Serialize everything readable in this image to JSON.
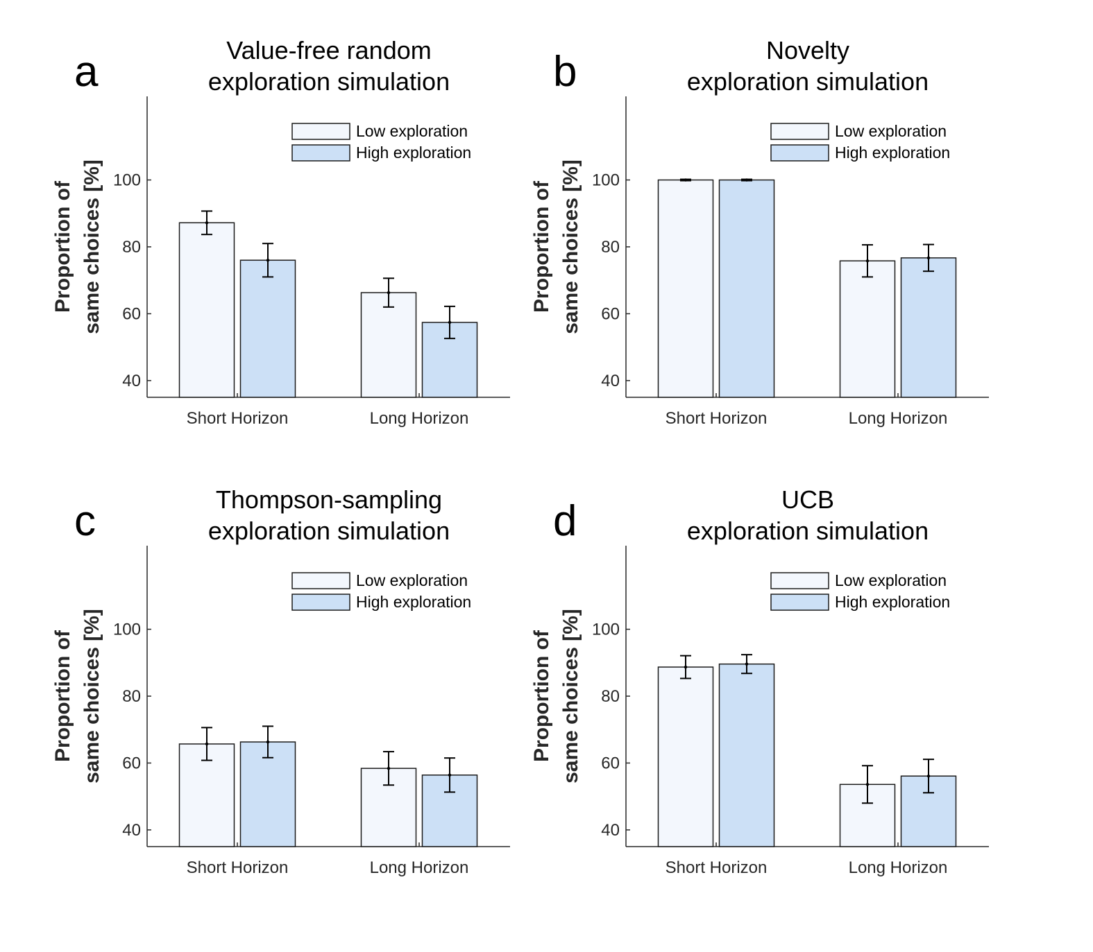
{
  "colors": {
    "low": "#f3f7fd",
    "high": "#cce0f6",
    "stroke": "#1a1a1a"
  },
  "chart_data": [
    {
      "type": "bar",
      "panel": "a",
      "title_lines": [
        "Value-free random",
        "exploration simulation"
      ],
      "ylabel_lines": [
        "Proportion of",
        "same choices [%]"
      ],
      "categories": [
        "Short Horizon",
        "Long Horizon"
      ],
      "ylim": [
        35,
        125
      ],
      "yticks": [
        40,
        60,
        80,
        100
      ],
      "legend": {
        "position": "top-right"
      },
      "series": [
        {
          "name": "Low exploration",
          "values": [
            87.2,
            66.3
          ],
          "errors": [
            3.5,
            4.3
          ]
        },
        {
          "name": "High exploration",
          "values": [
            76.0,
            57.4
          ],
          "errors": [
            5.0,
            4.8
          ]
        }
      ]
    },
    {
      "type": "bar",
      "panel": "b",
      "title_lines": [
        "Novelty",
        "exploration simulation"
      ],
      "ylabel_lines": [
        "Proportion of",
        "same choices [%]"
      ],
      "categories": [
        "Short Horizon",
        "Long Horizon"
      ],
      "ylim": [
        35,
        125
      ],
      "yticks": [
        40,
        60,
        80,
        100
      ],
      "legend": {
        "position": "top-right"
      },
      "series": [
        {
          "name": "Low exploration",
          "values": [
            100.0,
            75.8
          ],
          "errors": [
            0.2,
            4.8
          ]
        },
        {
          "name": "High exploration",
          "values": [
            100.0,
            76.7
          ],
          "errors": [
            0.2,
            4.0
          ]
        }
      ]
    },
    {
      "type": "bar",
      "panel": "c",
      "title_lines": [
        "Thompson-sampling",
        "exploration simulation"
      ],
      "ylabel_lines": [
        "Proportion of",
        "same choices [%]"
      ],
      "categories": [
        "Short Horizon",
        "Long Horizon"
      ],
      "ylim": [
        35,
        125
      ],
      "yticks": [
        40,
        60,
        80,
        100
      ],
      "legend": {
        "position": "top-right"
      },
      "series": [
        {
          "name": "Low exploration",
          "values": [
            65.7,
            58.4
          ],
          "errors": [
            4.9,
            5.0
          ]
        },
        {
          "name": "High exploration",
          "values": [
            66.3,
            56.4
          ],
          "errors": [
            4.7,
            5.1
          ]
        }
      ]
    },
    {
      "type": "bar",
      "panel": "d",
      "title_lines": [
        "UCB",
        "exploration simulation"
      ],
      "ylabel_lines": [
        "Proportion of",
        "same choices [%]"
      ],
      "categories": [
        "Short Horizon",
        "Long Horizon"
      ],
      "ylim": [
        35,
        125
      ],
      "yticks": [
        40,
        60,
        80,
        100
      ],
      "legend": {
        "position": "top-right"
      },
      "series": [
        {
          "name": "Low exploration",
          "values": [
            88.7,
            53.6
          ],
          "errors": [
            3.4,
            5.6
          ]
        },
        {
          "name": "High exploration",
          "values": [
            89.6,
            56.1
          ],
          "errors": [
            2.8,
            5.0
          ]
        }
      ]
    }
  ]
}
